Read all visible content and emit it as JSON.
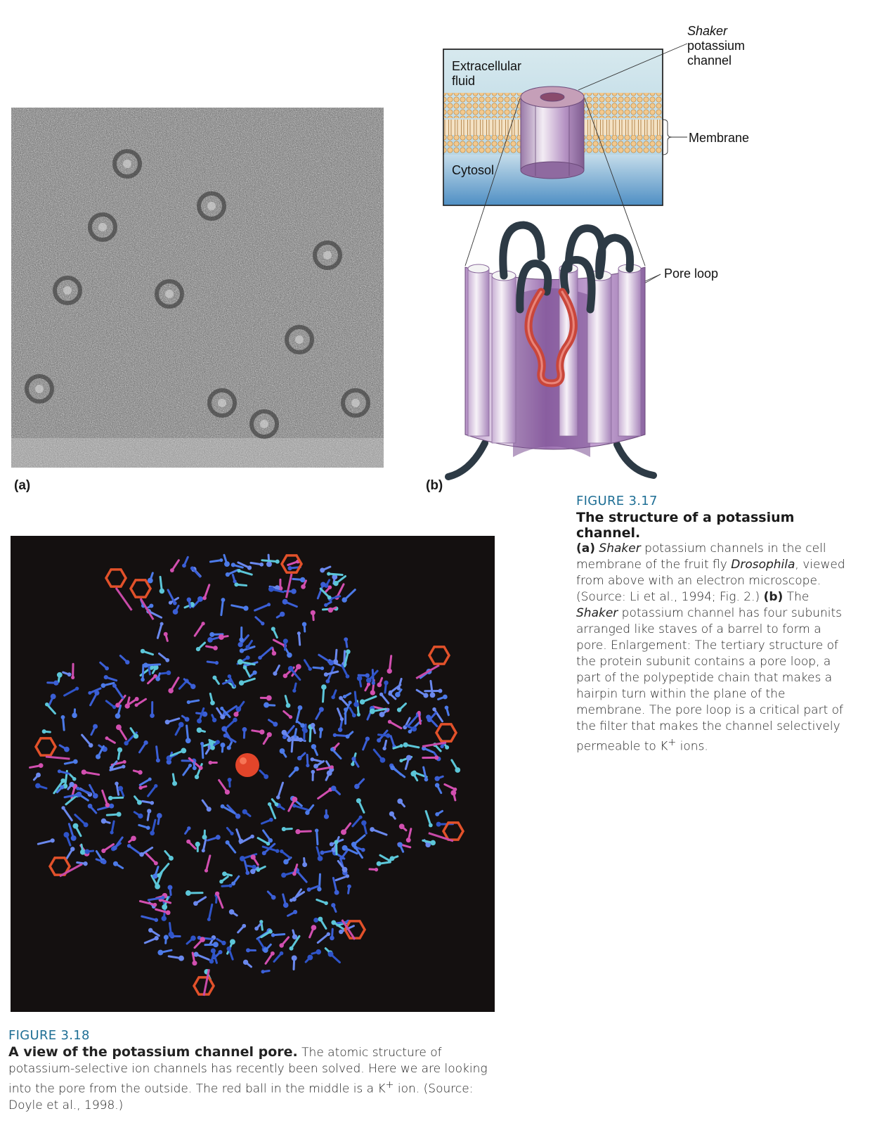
{
  "figure_317": {
    "panel_a_label": "(a)",
    "panel_b_label": "(b)",
    "number": "FIGURE 3.17",
    "title": "The structure of a potassium channel.",
    "caption": {
      "a_marker": "(a)",
      "a_text_1": "Shaker",
      "a_text_2": " potassium channels in the cell membrane of the fruit fly ",
      "a_text_3": "Drosophila",
      "a_text_4": ", viewed from above with an electron microscope. (Source: Li et al., 1994; Fig. 2.) ",
      "b_marker": "(b)",
      "b_text_1": " The ",
      "b_text_2": "Shaker",
      "b_text_3": " potassium channel has four subunits arranged like staves of a barrel to form a pore. Enlargement: The tertiary structure of the protein subunit contains a pore loop, a part of the polypeptide chain that makes a hairpin turn within the plane of the membrane. The pore loop is a critical part of the filter that makes the channel selectively permeable to K",
      "b_sup": "+",
      "b_text_4": " ions."
    },
    "diagram": {
      "shaker_line1": "Shaker",
      "shaker_line2": "potassium",
      "shaker_line3": "channel",
      "extracellular_line1": "Extracellular",
      "extracellular_line2": "fluid",
      "cytosol": "Cytosol",
      "membrane": "Membrane",
      "pore_loop": "Pore loop"
    }
  },
  "figure_318": {
    "number": "FIGURE 3.18",
    "title": "A view of the potassium channel pore.",
    "caption_1": " The atomic structure of potassium-selective ion channels has recently been solved. Here we are looking into the pore from the outside. The red ball in the middle is a K",
    "caption_sup": "+",
    "caption_2": " ion. (Source: Doyle et al., 1998.)"
  },
  "colors": {
    "figure_number": "#1f6f95",
    "channel_purple": "#a07fb8",
    "pore_loop_red": "#c9463b",
    "molecule_background": "#141010"
  }
}
